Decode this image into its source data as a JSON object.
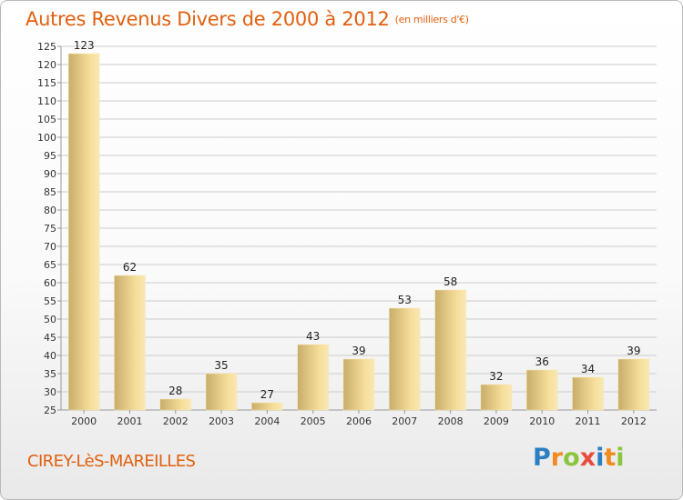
{
  "title": "Autres Revenus Divers de 2000 à 2012",
  "title_unit": "(en milliers d'€)",
  "city": "CIREY-LèS-MAREILLES",
  "logo": {
    "letters": [
      "P",
      "r",
      "o",
      "x",
      "i",
      "t",
      "i"
    ],
    "colors": [
      "#2c7fc1",
      "#f28a1e",
      "#8cc43c",
      "#e84c3d",
      "#2c7fc1",
      "#f28a1e",
      "#8cc43c"
    ]
  },
  "colors": {
    "accent": "#e06010",
    "bar_light": "#f6de9a",
    "bar_dark": "#c8ad6a",
    "grid": "#cccccc"
  },
  "chart_data": {
    "type": "bar",
    "categories": [
      "2000",
      "2001",
      "2002",
      "2003",
      "2004",
      "2005",
      "2006",
      "2007",
      "2008",
      "2009",
      "2010",
      "2011",
      "2012"
    ],
    "values": [
      123,
      62,
      28,
      35,
      27,
      43,
      39,
      53,
      58,
      32,
      36,
      34,
      39
    ],
    "ylim": [
      25,
      125
    ],
    "ytick_step": 5,
    "grid": true
  }
}
